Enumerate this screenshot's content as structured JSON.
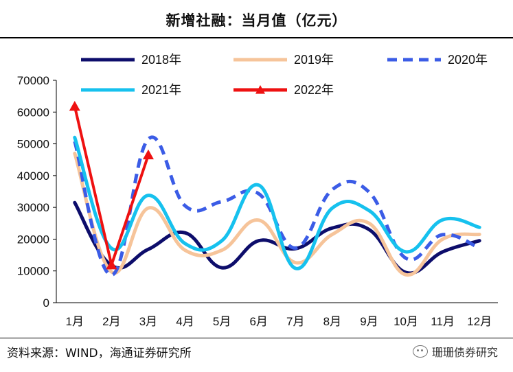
{
  "chart_data": {
    "type": "line",
    "title": "新增社融：当月值（亿元）",
    "xlabel": "",
    "ylabel": "",
    "categories": [
      "1月",
      "2月",
      "3月",
      "4月",
      "5月",
      "6月",
      "7月",
      "8月",
      "9月",
      "10月",
      "11月",
      "12月"
    ],
    "ylim": [
      0,
      70000
    ],
    "yticks": [
      0,
      10000,
      20000,
      30000,
      40000,
      50000,
      60000,
      70000
    ],
    "series": [
      {
        "name": "2018年",
        "color": "#0d0d6b",
        "style": "solid",
        "values": [
          31500,
          11700,
          16800,
          22000,
          11000,
          19500,
          17000,
          23500,
          23000,
          9500,
          16000,
          19500
        ]
      },
      {
        "name": "2019年",
        "color": "#f6c49a",
        "style": "solid",
        "values": [
          47000,
          9700,
          29800,
          16500,
          16500,
          26000,
          12600,
          21500,
          25000,
          8800,
          20000,
          21500
        ]
      },
      {
        "name": "2020年",
        "color": "#3b5ce6",
        "style": "dashed",
        "values": [
          50800,
          8700,
          51500,
          30500,
          31800,
          34300,
          17200,
          35600,
          34800,
          14000,
          21400,
          17200
        ]
      },
      {
        "name": "2021年",
        "color": "#16c1ee",
        "style": "solid",
        "values": [
          52000,
          17100,
          33800,
          18600,
          19500,
          37000,
          10800,
          29800,
          29000,
          16000,
          26100,
          23700
        ]
      },
      {
        "name": "2022年",
        "color": "#ee1111",
        "style": "marker",
        "values": [
          61800,
          11900,
          46500,
          null,
          null,
          null,
          null,
          null,
          null,
          null,
          null,
          null
        ]
      }
    ]
  },
  "source": "资料来源：WIND，海通证券研究所",
  "watermark": "珊珊债券研究"
}
